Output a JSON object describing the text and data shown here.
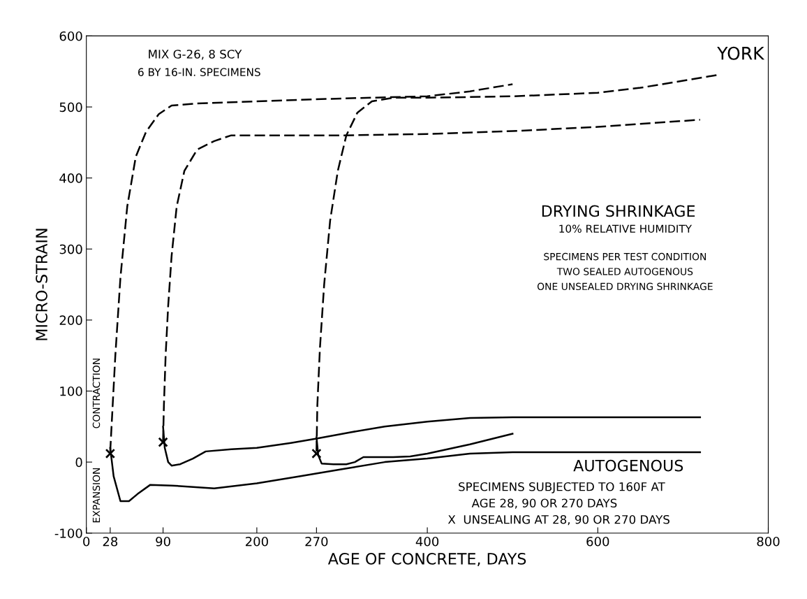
{
  "chart_data": {
    "type": "line",
    "xlabel": "AGE OF CONCRETE, DAYS",
    "ylabel": "MICRO-STRAIN",
    "xlim": [
      0,
      800
    ],
    "ylim": [
      -100,
      600
    ],
    "xticks": [
      0,
      28,
      90,
      200,
      270,
      400,
      600,
      800
    ],
    "yticks": [
      -100,
      0,
      100,
      200,
      300,
      400,
      500,
      600
    ],
    "grid": false,
    "series": [
      {
        "color": "#000000",
        "line_style": "solid",
        "x": [
          28,
          32,
          40,
          50,
          60,
          75,
          100,
          150,
          200,
          250,
          300,
          350,
          400,
          450,
          500,
          600,
          720
        ],
        "values": [
          20,
          -20,
          -55,
          -55,
          -45,
          -32,
          -33,
          -37,
          -30,
          -20,
          -10,
          0,
          5,
          12,
          14,
          14,
          14
        ]
      },
      {
        "color": "#000000",
        "line_style": "solid",
        "x": [
          90,
          92,
          96,
          100,
          110,
          125,
          140,
          170,
          200,
          240,
          270,
          310,
          350,
          400,
          450,
          500,
          600,
          720
        ],
        "values": [
          50,
          20,
          0,
          -5,
          -3,
          5,
          15,
          18,
          20,
          27,
          33,
          42,
          50,
          57,
          62,
          63,
          63,
          63
        ]
      },
      {
        "color": "#000000",
        "line_style": "solid",
        "x": [
          270,
          272,
          276,
          290,
          305,
          315,
          325,
          360,
          380,
          400,
          450,
          500
        ],
        "values": [
          35,
          10,
          -2,
          -3,
          -3,
          0,
          7,
          7,
          8,
          12,
          25,
          40
        ]
      },
      {
        "color": "#000000",
        "line_style": "dashed",
        "x": [
          28,
          30,
          34,
          40,
          48,
          58,
          70,
          85,
          100,
          130,
          200,
          300,
          400,
          450,
          500
        ],
        "values": [
          15,
          60,
          150,
          260,
          360,
          430,
          465,
          490,
          502,
          505,
          508,
          512,
          515,
          522,
          532
        ]
      },
      {
        "color": "#000000",
        "line_style": "dashed",
        "x": [
          90,
          91,
          93,
          96,
          100,
          106,
          115,
          130,
          150,
          170,
          200,
          300,
          400,
          500,
          600,
          720
        ],
        "values": [
          30,
          80,
          150,
          220,
          290,
          360,
          410,
          440,
          452,
          460,
          460,
          460,
          462,
          466,
          472,
          482
        ]
      },
      {
        "color": "#000000",
        "line_style": "dashed",
        "x": [
          270,
          271,
          274,
          279,
          286,
          295,
          305,
          318,
          335,
          360,
          400,
          500,
          600,
          650,
          700,
          740
        ],
        "values": [
          15,
          80,
          160,
          250,
          340,
          410,
          460,
          492,
          508,
          513,
          513,
          515,
          520,
          527,
          537,
          545
        ]
      },
      {
        "type": "scatter",
        "marker": "cross",
        "color": "#000000",
        "x": [
          28,
          90,
          270
        ],
        "values": [
          12,
          28,
          12
        ]
      }
    ],
    "annotations": [
      "MIX G-26, 8 SCY",
      "6 BY 16-IN. SPECIMENS",
      "YORK",
      "DRYING SHRINKAGE",
      "10% RELATIVE HUMIDITY",
      "SPECIMENS PER TEST CONDITION",
      "TWO SEALED AUTOGENOUS",
      "ONE UNSEALED DRYING SHRINKAGE",
      "AUTOGENOUS",
      "SPECIMENS SUBJECTED TO 160F AT",
      "AGE 28, 90 OR 270 DAYS",
      "X  UNSEALING AT 28, 90 OR 270 DAYS",
      "CONTRACTION",
      "EXPANSION"
    ]
  }
}
